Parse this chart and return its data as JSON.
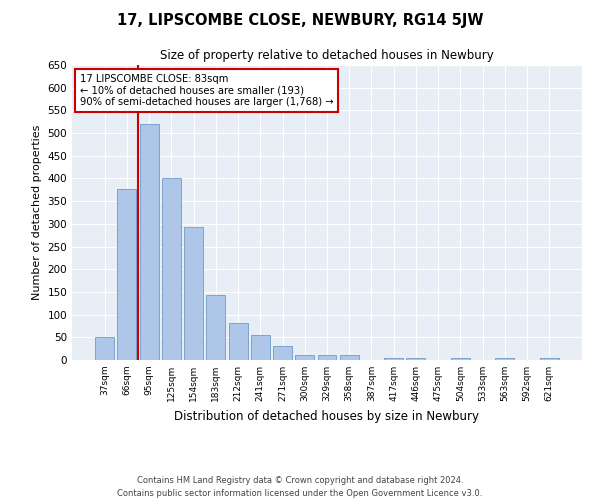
{
  "title": "17, LIPSCOMBE CLOSE, NEWBURY, RG14 5JW",
  "subtitle": "Size of property relative to detached houses in Newbury",
  "xlabel": "Distribution of detached houses by size in Newbury",
  "ylabel": "Number of detached properties",
  "categories": [
    "37sqm",
    "66sqm",
    "95sqm",
    "125sqm",
    "154sqm",
    "183sqm",
    "212sqm",
    "241sqm",
    "271sqm",
    "300sqm",
    "329sqm",
    "358sqm",
    "387sqm",
    "417sqm",
    "446sqm",
    "475sqm",
    "504sqm",
    "533sqm",
    "563sqm",
    "592sqm",
    "621sqm"
  ],
  "values": [
    51,
    377,
    519,
    402,
    293,
    143,
    81,
    55,
    30,
    12,
    12,
    12,
    0,
    5,
    5,
    0,
    5,
    0,
    5,
    0,
    5
  ],
  "bar_color": "#aec6e8",
  "bar_edge_color": "#5a8fc2",
  "vline_x_index": 1.5,
  "annotation_text": "17 LIPSCOMBE CLOSE: 83sqm\n← 10% of detached houses are smaller (193)\n90% of semi-detached houses are larger (1,768) →",
  "annotation_box_color": "#ffffff",
  "annotation_box_edge_color": "#cc0000",
  "vline_color": "#cc0000",
  "ylim": [
    0,
    650
  ],
  "yticks": [
    0,
    50,
    100,
    150,
    200,
    250,
    300,
    350,
    400,
    450,
    500,
    550,
    600,
    650
  ],
  "bg_color": "#e8eef5",
  "footer_line1": "Contains HM Land Registry data © Crown copyright and database right 2024.",
  "footer_line2": "Contains public sector information licensed under the Open Government Licence v3.0."
}
